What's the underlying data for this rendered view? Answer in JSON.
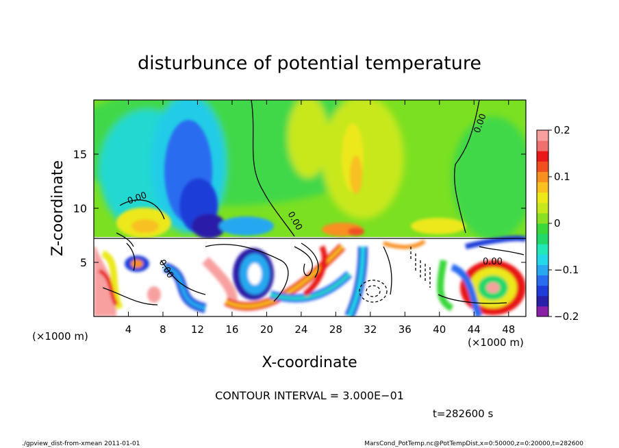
{
  "chart_data": {
    "type": "heatmap",
    "title": "disturbunce of potential temperature",
    "xlabel": "X-coordinate",
    "ylabel": "Z-coordinate",
    "x_unit_left": "(×1000 m)",
    "x_unit_right": "(×1000 m)",
    "xlim": [
      0,
      50
    ],
    "ylim": [
      0,
      20
    ],
    "x_ticks": [
      4,
      8,
      12,
      16,
      20,
      24,
      28,
      32,
      36,
      40,
      44,
      48
    ],
    "y_ticks": [
      5,
      10,
      15
    ],
    "colorbar": {
      "range": [
        -0.2,
        0.2
      ],
      "ticks": [
        {
          "value": 0.2,
          "label": "0.2"
        },
        {
          "value": 0.1,
          "label": "0.1"
        },
        {
          "value": 0,
          "label": "0"
        },
        {
          "value": -0.1,
          "label": "−0.1"
        },
        {
          "value": -0.2,
          "label": "−0.2"
        }
      ],
      "colors": [
        "#8a1fa8",
        "#2a1fa8",
        "#1f3cd8",
        "#2a6cf0",
        "#28a8f0",
        "#23d8e8",
        "#22e8b8",
        "#22d86a",
        "#3ad83a",
        "#8ae022",
        "#c8e81e",
        "#ece81a",
        "#f8c020",
        "#f89020",
        "#f05020",
        "#e81818",
        "#f07070",
        "#f8a0a0"
      ]
    },
    "contour_labels": [
      "0.00",
      "0.00",
      "0.00",
      "0.00",
      "0.00"
    ],
    "contour_interval": "CONTOUR INTERVAL = 3.000E−01",
    "time": "t=282600 s"
  },
  "footer": {
    "left": "./gpview_dist-from-xmean  2011-01-01",
    "right": "MarsCond_PotTemp.nc@PotTempDist,x=0:50000,z=0:20000,t=282600"
  }
}
